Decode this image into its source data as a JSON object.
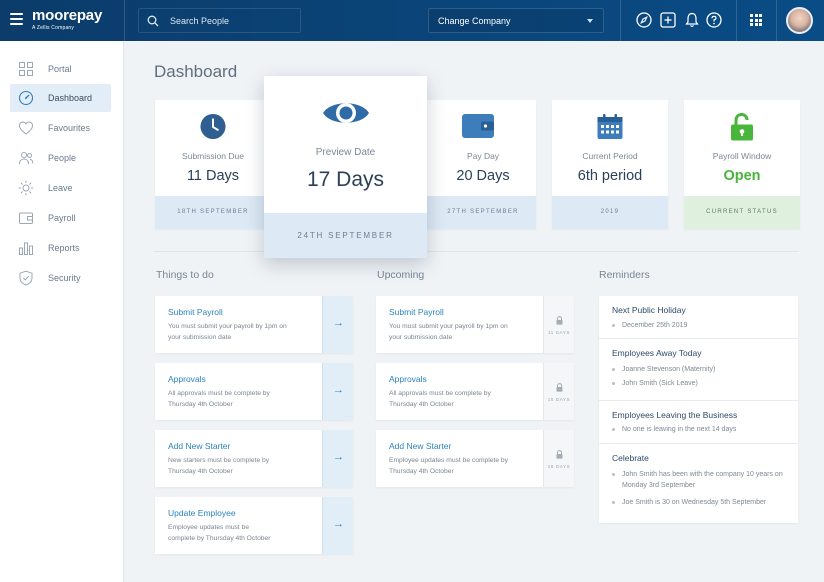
{
  "topbar": {
    "logo": "moorepay",
    "logo_sub": "A Zellis Company",
    "search_placeholder": "Search People",
    "company_select": "Change Company"
  },
  "sidebar": {
    "items": [
      {
        "label": "Portal",
        "icon": "grid-icon"
      },
      {
        "label": "Dashboard",
        "icon": "gauge-icon",
        "active": true
      },
      {
        "label": "Favourites",
        "icon": "heart-icon"
      },
      {
        "label": "People",
        "icon": "people-icon"
      },
      {
        "label": "Leave",
        "icon": "sun-icon"
      },
      {
        "label": "Payroll",
        "icon": "wallet-icon"
      },
      {
        "label": "Reports",
        "icon": "bar-chart-icon"
      },
      {
        "label": "Security",
        "icon": "shield-icon"
      }
    ]
  },
  "page_title": "Dashboard",
  "cards": [
    {
      "label": "Submission Due",
      "value": "11 Days",
      "footer": "18TH SEPTEMBER"
    },
    {
      "label": "Preview Date",
      "value": "17 Days",
      "footer": "24TH SEPTEMBER"
    },
    {
      "label": "Pay Day",
      "value": "20 Days",
      "footer": "27TH SEPTEMBER"
    },
    {
      "label": "Current Period",
      "value": "6th period",
      "footer": "2019"
    },
    {
      "label": "Payroll Window",
      "value": "Open",
      "footer": "CURRENT STATUS"
    }
  ],
  "columns": {
    "todo": "Things to do",
    "upcoming": "Upcoming",
    "reminders": "Reminders"
  },
  "todo": [
    {
      "title": "Submit Payroll",
      "desc": "You must submit your payroll by 1pm on your submission date"
    },
    {
      "title": "Approvals",
      "desc": "All approvals must be complete by Thursday 4th October"
    },
    {
      "title": "Add New Starter",
      "desc": "New starters must be complete by Thursday 4th October"
    },
    {
      "title": "Update Employee",
      "desc": "Employee updates must be complete by Thursday 4th October"
    }
  ],
  "upcoming": [
    {
      "title": "Submit Payroll",
      "desc": "You must submit your payroll by 1pm on your submission date",
      "days": "11 DAYS"
    },
    {
      "title": "Approvals",
      "desc": "All approvals must be complete by Thursday 4th October",
      "days": "15 DAYS"
    },
    {
      "title": "Add New Starter",
      "desc": "Employee updates must be complete by Thursday 4th October",
      "days": "18 DAYS"
    }
  ],
  "reminders": [
    {
      "heading": "Next Public Holiday",
      "items": [
        "December 25th 2019"
      ]
    },
    {
      "heading": "Employees Away Today",
      "items": [
        "Joanne Stevenson (Maternity)",
        "John Smith (Sick Leave)"
      ]
    },
    {
      "heading": "Employees Leaving the Business",
      "items": [
        "No one is leaving in the next 14 days"
      ]
    },
    {
      "heading": "Celebrate",
      "items": [
        "John Smith has been with the company 10 years on Monday 3rd September",
        "Joe Smith is 30 on Wednesday 5th September"
      ]
    }
  ],
  "colors": {
    "topbar": "#0a4c86",
    "accent": "#2b82bd",
    "open_status": "#48b53b",
    "active_nav_bg": "#e3edf7"
  }
}
